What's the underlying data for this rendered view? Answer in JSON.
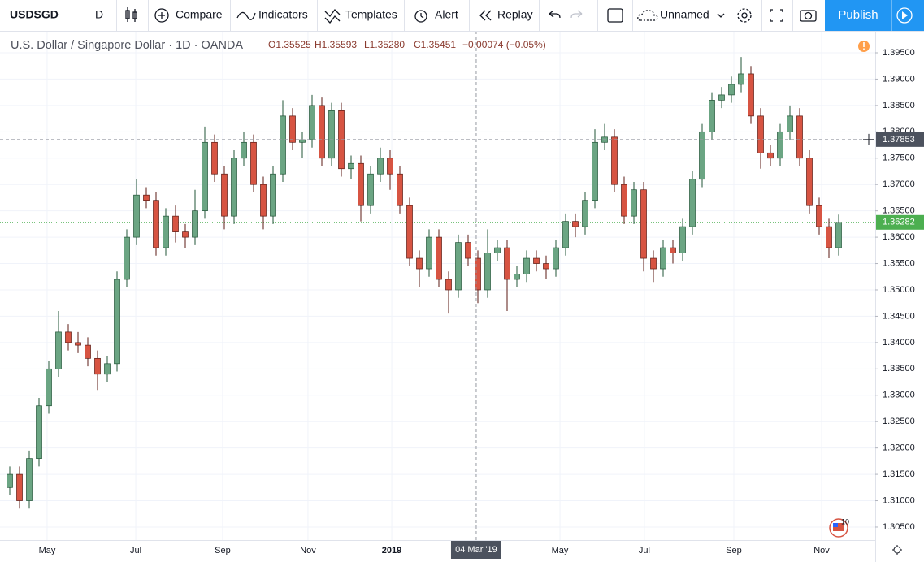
{
  "toolbar": {
    "symbol": "USDSGD",
    "interval": "D",
    "compare": "Compare",
    "indicators": "Indicators",
    "templates": "Templates",
    "alert": "Alert",
    "replay": "Replay",
    "layout_name": "Unnamed",
    "publish": "Publish"
  },
  "chart_data": {
    "type": "candlestick",
    "title": "U.S. Dollar / Singapore Dollar · 1D · OANDA",
    "legend_ohlc": [
      {
        "value": 1.35525,
        "label": "O1.35525"
      },
      {
        "value": 1.35593,
        "label": "H1.35593"
      },
      {
        "value": 1.3528,
        "label": "L1.35280"
      },
      {
        "value": 1.35451,
        "label": "C1.35451"
      }
    ],
    "change": {
      "value": -0.00074,
      "label": "−0.00074 (−0.05%)"
    },
    "up_color": "#6ba583",
    "down_color": "#d75442",
    "up_border": "#225437",
    "down_border": "#5b1a13",
    "open": [
      1.3125,
      1.315,
      1.31,
      1.318,
      1.328,
      1.335,
      1.342,
      1.34,
      1.3395,
      1.337,
      1.334,
      1.336,
      1.352,
      1.36,
      1.368,
      1.367,
      1.358,
      1.364,
      1.361,
      1.36,
      1.365,
      1.378,
      1.372,
      1.364,
      1.375,
      1.378,
      1.37,
      1.364,
      1.372,
      1.383,
      1.378,
      1.3785,
      1.385,
      1.375,
      1.384,
      1.373,
      1.374,
      1.366,
      1.372,
      1.375,
      1.372,
      1.366,
      1.356,
      1.354,
      1.36,
      1.352,
      1.35,
      1.359,
      1.356,
      1.35,
      1.357,
      1.358,
      1.352,
      1.353,
      1.356,
      1.355,
      1.354,
      1.358,
      1.363,
      1.362,
      1.367,
      1.378,
      1.379,
      1.37,
      1.364,
      1.369,
      1.356,
      1.354,
      1.358,
      1.357,
      1.362,
      1.371,
      1.38,
      1.386,
      1.387,
      1.389,
      1.391,
      1.383,
      1.376,
      1.375,
      1.38,
      1.383,
      1.375,
      1.366,
      1.362,
      1.358
    ],
    "high": [
      1.3165,
      1.3165,
      1.3195,
      1.3295,
      1.3365,
      1.346,
      1.3435,
      1.342,
      1.341,
      1.3385,
      1.3375,
      1.3535,
      1.3615,
      1.371,
      1.3695,
      1.3685,
      1.3655,
      1.366,
      1.3625,
      1.369,
      1.381,
      1.3795,
      1.3735,
      1.3765,
      1.38,
      1.3795,
      1.3715,
      1.3735,
      1.386,
      1.3845,
      1.38,
      1.387,
      1.3865,
      1.3855,
      1.3855,
      1.3755,
      1.3755,
      1.3735,
      1.377,
      1.3765,
      1.3735,
      1.3675,
      1.3575,
      1.3615,
      1.3615,
      1.3535,
      1.3605,
      1.3605,
      1.3575,
      1.3615,
      1.3595,
      1.3595,
      1.3545,
      1.3575,
      1.3575,
      1.3565,
      1.3595,
      1.3645,
      1.3645,
      1.3685,
      1.3805,
      1.3815,
      1.3805,
      1.3715,
      1.3705,
      1.3705,
      1.3575,
      1.3595,
      1.3595,
      1.3635,
      1.3725,
      1.3815,
      1.3875,
      1.3885,
      1.3905,
      1.3942,
      1.3925,
      1.3845,
      1.3775,
      1.3815,
      1.385,
      1.3845,
      1.3765,
      1.3675,
      1.3635,
      1.3643
    ],
    "low": [
      1.311,
      1.3085,
      1.3085,
      1.3165,
      1.3265,
      1.3335,
      1.3385,
      1.338,
      1.3355,
      1.331,
      1.3325,
      1.3345,
      1.3505,
      1.3585,
      1.3655,
      1.3565,
      1.3565,
      1.359,
      1.358,
      1.3585,
      1.3635,
      1.3705,
      1.3615,
      1.3625,
      1.3735,
      1.3685,
      1.3615,
      1.3625,
      1.3705,
      1.3765,
      1.375,
      1.377,
      1.3735,
      1.3735,
      1.3715,
      1.371,
      1.363,
      1.3645,
      1.3705,
      1.369,
      1.3645,
      1.3545,
      1.3505,
      1.3525,
      1.3505,
      1.3455,
      1.3485,
      1.3545,
      1.3475,
      1.3485,
      1.3555,
      1.346,
      1.3505,
      1.3515,
      1.3535,
      1.352,
      1.3525,
      1.3565,
      1.36,
      1.3605,
      1.3655,
      1.3765,
      1.3685,
      1.3625,
      1.3625,
      1.3535,
      1.3515,
      1.3525,
      1.355,
      1.3555,
      1.3605,
      1.3695,
      1.3785,
      1.3845,
      1.3855,
      1.3875,
      1.3815,
      1.373,
      1.3735,
      1.3735,
      1.3785,
      1.3735,
      1.3645,
      1.3605,
      1.356,
      1.3565
    ],
    "close": [
      1.315,
      1.31,
      1.318,
      1.328,
      1.335,
      1.342,
      1.34,
      1.3395,
      1.337,
      1.334,
      1.336,
      1.352,
      1.36,
      1.368,
      1.367,
      1.358,
      1.364,
      1.361,
      1.36,
      1.365,
      1.378,
      1.372,
      1.364,
      1.375,
      1.378,
      1.37,
      1.364,
      1.372,
      1.383,
      1.378,
      1.3785,
      1.385,
      1.375,
      1.384,
      1.373,
      1.374,
      1.366,
      1.372,
      1.375,
      1.372,
      1.366,
      1.356,
      1.354,
      1.36,
      1.352,
      1.35,
      1.359,
      1.356,
      1.35,
      1.357,
      1.358,
      1.352,
      1.353,
      1.356,
      1.355,
      1.354,
      1.358,
      1.363,
      1.362,
      1.367,
      1.378,
      1.379,
      1.37,
      1.364,
      1.369,
      1.356,
      1.354,
      1.358,
      1.357,
      1.362,
      1.371,
      1.38,
      1.386,
      1.387,
      1.389,
      1.391,
      1.383,
      1.376,
      1.375,
      1.38,
      1.383,
      1.375,
      1.366,
      1.362,
      1.358,
      1.3628
    ],
    "ylim": [
      1.30253,
      1.39916
    ],
    "yticks": [
      {
        "value": 1.305,
        "label": "1.30500"
      },
      {
        "value": 1.31,
        "label": "1.31000"
      },
      {
        "value": 1.315,
        "label": "1.31500"
      },
      {
        "value": 1.32,
        "label": "1.32000"
      },
      {
        "value": 1.325,
        "label": "1.32500"
      },
      {
        "value": 1.33,
        "label": "1.33000"
      },
      {
        "value": 1.335,
        "label": "1.33500"
      },
      {
        "value": 1.34,
        "label": "1.34000"
      },
      {
        "value": 1.345,
        "label": "1.34500"
      },
      {
        "value": 1.35,
        "label": "1.35000"
      },
      {
        "value": 1.355,
        "label": "1.35500"
      },
      {
        "value": 1.36,
        "label": "1.36000"
      },
      {
        "value": 1.365,
        "label": "1.36500"
      },
      {
        "value": 1.37,
        "label": "1.37000"
      },
      {
        "value": 1.375,
        "label": "1.37500"
      },
      {
        "value": 1.38,
        "label": "1.38000"
      },
      {
        "value": 1.385,
        "label": "1.38500"
      },
      {
        "value": 1.39,
        "label": "1.39000"
      },
      {
        "value": 1.395,
        "label": "1.39500"
      }
    ],
    "xticks": [
      {
        "value": 3.83,
        "label": "May"
      },
      {
        "value": 12.92,
        "label": "Jul"
      },
      {
        "value": 21.83,
        "label": "Sep"
      },
      {
        "value": 30.58,
        "label": "Nov"
      },
      {
        "value": 39.17,
        "label": "2019"
      },
      {
        "value": 56.42,
        "label": "May"
      },
      {
        "value": 65.08,
        "label": "Jul"
      },
      {
        "value": 74.25,
        "label": "Sep"
      },
      {
        "value": 83.25,
        "label": "Nov"
      }
    ],
    "crosshair": {
      "x": {
        "value": 47.83,
        "label": "04 Mar '19"
      },
      "price": {
        "value": 1.37853,
        "label": "1.37853"
      }
    },
    "last_price": {
      "value": 1.36282,
      "label": "1.36282"
    },
    "badge": "10",
    "grid": true
  }
}
